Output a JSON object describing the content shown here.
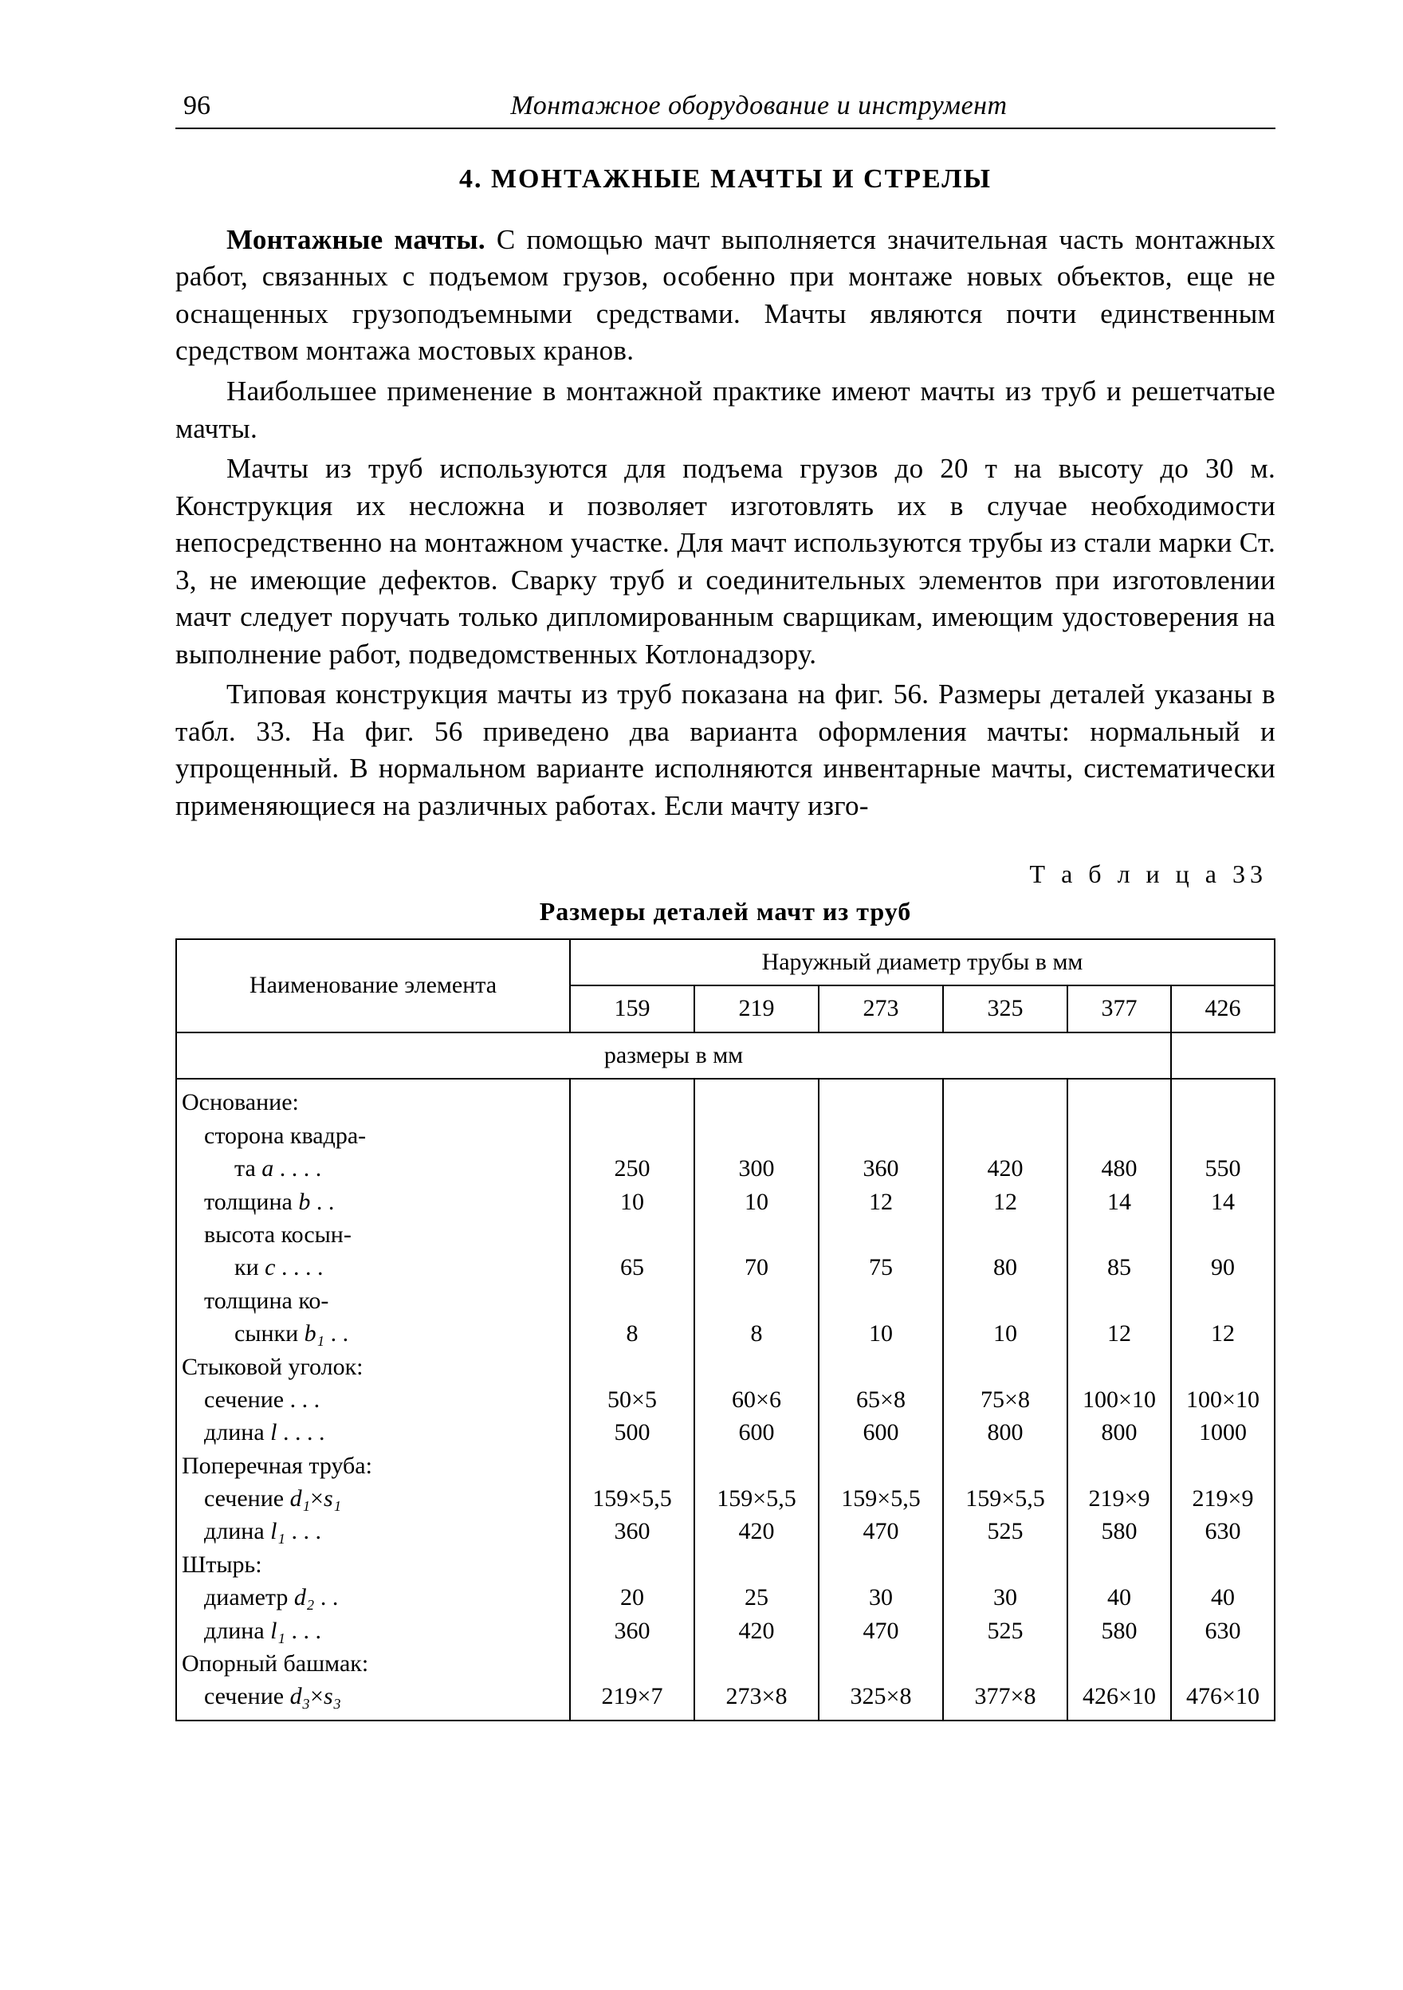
{
  "header": {
    "page_number": "96",
    "running_title": "Монтажное оборудование и инструмент"
  },
  "section_title": "4. МОНТАЖНЫЕ МАЧТЫ И СТРЕЛЫ",
  "paragraphs": {
    "p1_lead": "Монтажные мачты.",
    "p1_rest": " С помощью мачт выполняется значительная часть монтажных работ, связанных с подъемом грузов, особенно при монтаже новых объектов, еще не оснащенных грузоподъемными средствами. Мачты являются почти единственным средством монтажа мостовых кранов.",
    "p2": "Наибольшее применение в монтажной практике имеют мачты из труб и решетчатые мачты.",
    "p3": "Мачты из труб используются для подъема грузов до 20 т на высоту до 30 м. Конструкция их несложна и позволяет изготовлять их в случае необходимости непосредственно на монтажном участке. Для мачт используются трубы из стали марки Ст. 3, не имеющие дефектов. Сварку труб и соединительных элементов при изготовлении мачт следует поручать только дипломированным сварщикам, имеющим удостоверения на выполнение работ, подведомственных Котлонадзору.",
    "p4": "Типовая конструкция мачты из труб показана на фиг. 56. Размеры деталей указаны в табл. 33. На фиг. 56 приведено два варианта оформления мачты: нормальный и упрощенный. В нормальном варианте исполняются инвентарные мачты, систематически применяющиеся на различных работах. Если мачту изго-"
  },
  "table": {
    "label": "Т а б л и ц а   33",
    "caption": "Размеры деталей мачт из труб",
    "col_group_header": "Наружный диаметр трубы в мм",
    "rowhead_label": "Наименование элемента",
    "sub_header": "размеры в мм",
    "columns": [
      "159",
      "219",
      "273",
      "325",
      "377",
      "426"
    ],
    "body_rows": [
      {
        "label_html": "Основание:",
        "indent": 0,
        "values": [
          "",
          "",
          "",
          "",
          "",
          ""
        ]
      },
      {
        "label_html": "сторона квадра-",
        "indent": 1,
        "values": [
          "",
          "",
          "",
          "",
          "",
          ""
        ]
      },
      {
        "label_html": "та <span class='ital'>a</span> . . . .",
        "indent": 2,
        "values": [
          "250",
          "300",
          "360",
          "420",
          "480",
          "550"
        ]
      },
      {
        "label_html": "толщина <span class='ital'>b</span> . .",
        "indent": 1,
        "values": [
          "10",
          "10",
          "12",
          "12",
          "14",
          "14"
        ]
      },
      {
        "label_html": "высота косын-",
        "indent": 1,
        "values": [
          "",
          "",
          "",
          "",
          "",
          ""
        ]
      },
      {
        "label_html": "ки <span class='ital'>c</span> . . . .",
        "indent": 2,
        "values": [
          "65",
          "70",
          "75",
          "80",
          "85",
          "90"
        ]
      },
      {
        "label_html": "толщина ко-",
        "indent": 1,
        "values": [
          "",
          "",
          "",
          "",
          "",
          ""
        ]
      },
      {
        "label_html": "сынки <span class='ital'>b₁</span> . .",
        "indent": 2,
        "values": [
          "8",
          "8",
          "10",
          "10",
          "12",
          "12"
        ]
      },
      {
        "label_html": "Стыковой уголок:",
        "indent": 0,
        "values": [
          "",
          "",
          "",
          "",
          "",
          ""
        ]
      },
      {
        "label_html": "сечение . . .",
        "indent": 1,
        "values": [
          "50×5",
          "60×6",
          "65×8",
          "75×8",
          "100×10",
          "100×10"
        ]
      },
      {
        "label_html": "длина <span class='ital'>l</span> . . . .",
        "indent": 1,
        "values": [
          "500",
          "600",
          "600",
          "800",
          "800",
          "1000"
        ]
      },
      {
        "label_html": "Поперечная труба:",
        "indent": 0,
        "values": [
          "",
          "",
          "",
          "",
          "",
          ""
        ]
      },
      {
        "label_html": "сечение <span class='ital'>d₁</span>×<span class='ital'>s₁</span>",
        "indent": 1,
        "values": [
          "159×5,5",
          "159×5,5",
          "159×5,5",
          "159×5,5",
          "219×9",
          "219×9"
        ]
      },
      {
        "label_html": "длина <span class='ital'>l₁</span> . . .",
        "indent": 1,
        "values": [
          "360",
          "420",
          "470",
          "525",
          "580",
          "630"
        ]
      },
      {
        "label_html": "Штырь:",
        "indent": 0,
        "values": [
          "",
          "",
          "",
          "",
          "",
          ""
        ]
      },
      {
        "label_html": "диаметр <span class='ital'>d₂</span> . .",
        "indent": 1,
        "values": [
          "20",
          "25",
          "30",
          "30",
          "40",
          "40"
        ]
      },
      {
        "label_html": "длина <span class='ital'>l₁</span> . . .",
        "indent": 1,
        "values": [
          "360",
          "420",
          "470",
          "525",
          "580",
          "630"
        ]
      },
      {
        "label_html": "Опорный башмак:",
        "indent": 0,
        "values": [
          "",
          "",
          "",
          "",
          "",
          ""
        ]
      },
      {
        "label_html": "сечение <span class='ital'>d₃</span>×<span class='ital'>s₃</span>",
        "indent": 1,
        "values": [
          "219×7",
          "273×8",
          "325×8",
          "377×8",
          "426×10",
          "476×10"
        ]
      }
    ]
  }
}
